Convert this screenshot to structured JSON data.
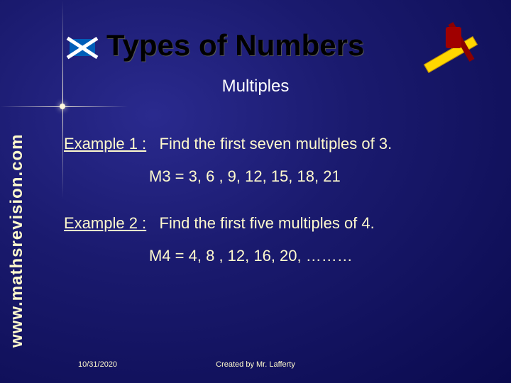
{
  "title": "Types of Numbers",
  "subtitle": "Multiples",
  "vertical_label": "www.mathsrevision.com",
  "example1": {
    "label": "Example 1 :",
    "prompt": "Find the first seven multiples of 3.",
    "answer": "M3 = 3, 6 , 9, 12, 15, 18, 21"
  },
  "example2": {
    "label": "Example 2 :",
    "prompt": "Find the first five multiples of 4.",
    "answer": "M4 = 4, 8 , 12, 16, 20, ………"
  },
  "footer": {
    "date": "10/31/2020",
    "author": "Created by Mr. Lafferty"
  },
  "styling": {
    "background_color": "#1a1a6e",
    "title_color": "#000000",
    "text_color": "#fffacd",
    "subtitle_color": "#ffffff",
    "title_fontsize": 42,
    "subtitle_fontsize": 24,
    "body_fontsize": 22,
    "footer_fontsize": 11,
    "font_family": "Comic Sans MS"
  }
}
